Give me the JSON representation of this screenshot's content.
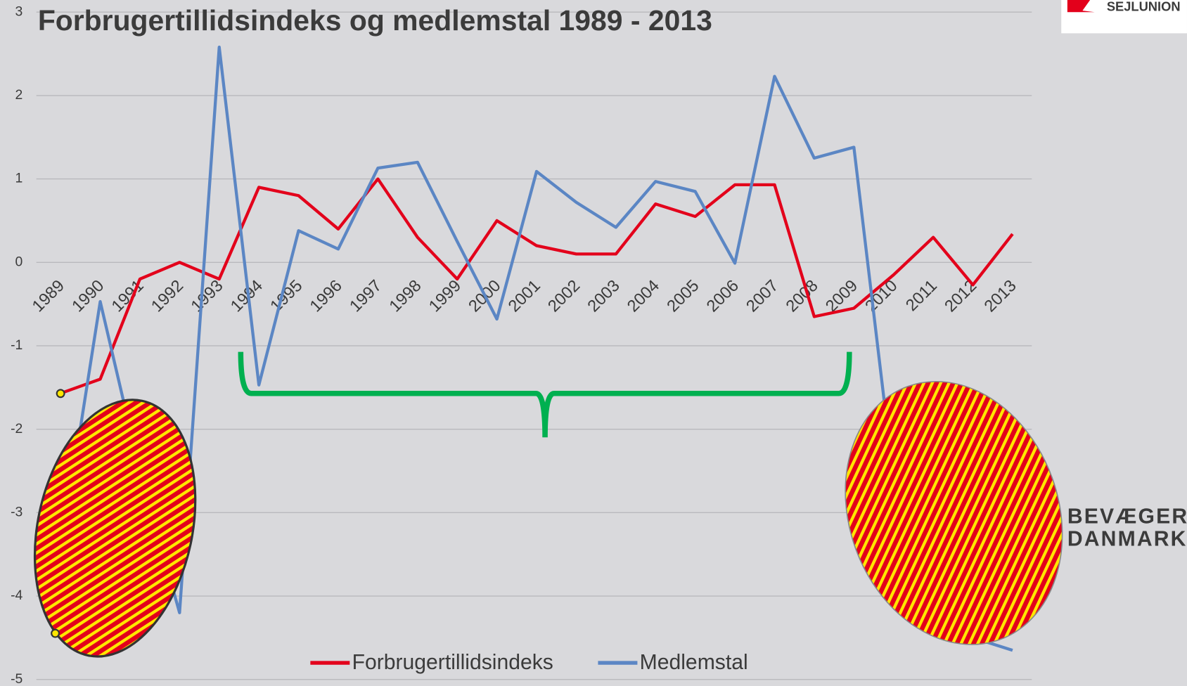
{
  "chart_data": {
    "type": "line",
    "title": "Forbrugertillidsindeks og medlemstal 1989 - 2013",
    "categories": [
      "1989",
      "1990",
      "1991",
      "1992",
      "1993",
      "1994",
      "1995",
      "1996",
      "1997",
      "1998",
      "1999",
      "2000",
      "2001",
      "2002",
      "2003",
      "2004",
      "2005",
      "2006",
      "2007",
      "2008",
      "2009",
      "2010",
      "2011",
      "2012",
      "2013"
    ],
    "series": [
      {
        "name": "Forbrugertillidsindeks",
        "color": "#e3001b",
        "values": [
          -1.57,
          -1.4,
          -0.2,
          0,
          -0.2,
          0.9,
          0.8,
          0.4,
          1.0,
          0.3,
          -0.2,
          0.5,
          0.2,
          0.1,
          0.1,
          0.7,
          0.55,
          0.93,
          0.93,
          -0.65,
          -0.55,
          -0.15,
          0.3,
          -0.27,
          0.34
        ]
      },
      {
        "name": "Medlemstal",
        "color": "#5b86c4",
        "values": [
          -3.5,
          -0.47,
          -2.5,
          -4.2,
          2.58,
          -1.47,
          0.38,
          0.16,
          1.13,
          1.2,
          0.25,
          -0.68,
          1.09,
          0.72,
          0.42,
          0.97,
          0.85,
          -0.01,
          2.23,
          1.25,
          1.38,
          -2.6,
          -4.0,
          -4.5,
          -4.65
        ]
      }
    ],
    "ylim": [
      -5,
      3
    ],
    "yticks": [
      -5,
      -4,
      -3,
      -2,
      -1,
      0,
      1,
      2,
      3
    ],
    "grid": true,
    "annotations": [
      "BEVÆGER",
      "DANMARK",
      "SEJLUNION"
    ]
  }
}
